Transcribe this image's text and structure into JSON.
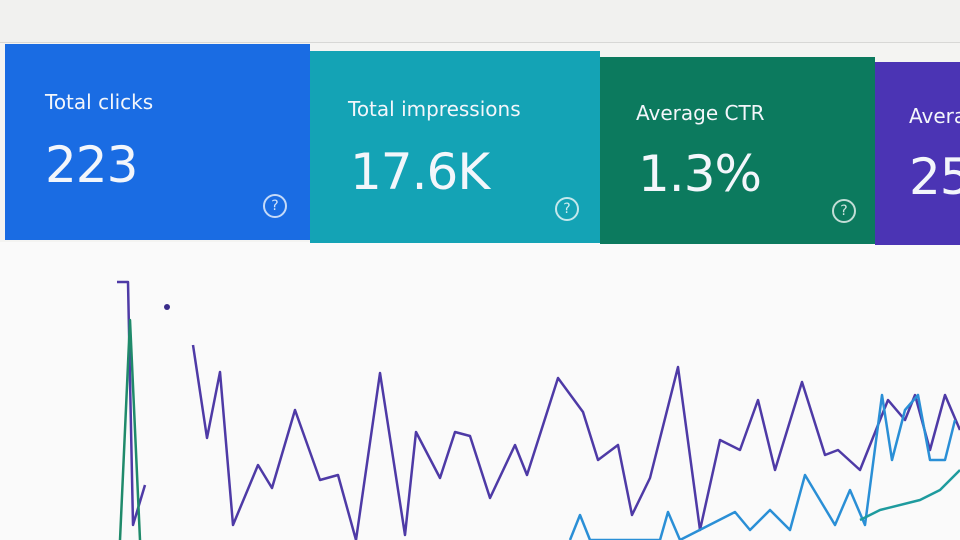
{
  "cards": [
    {
      "label": "Total clicks",
      "value": "223"
    },
    {
      "label": "Total impressions",
      "value": "17.6K"
    },
    {
      "label": "Average CTR",
      "value": "1.3%"
    },
    {
      "label": "Avera",
      "value": "25"
    }
  ]
}
